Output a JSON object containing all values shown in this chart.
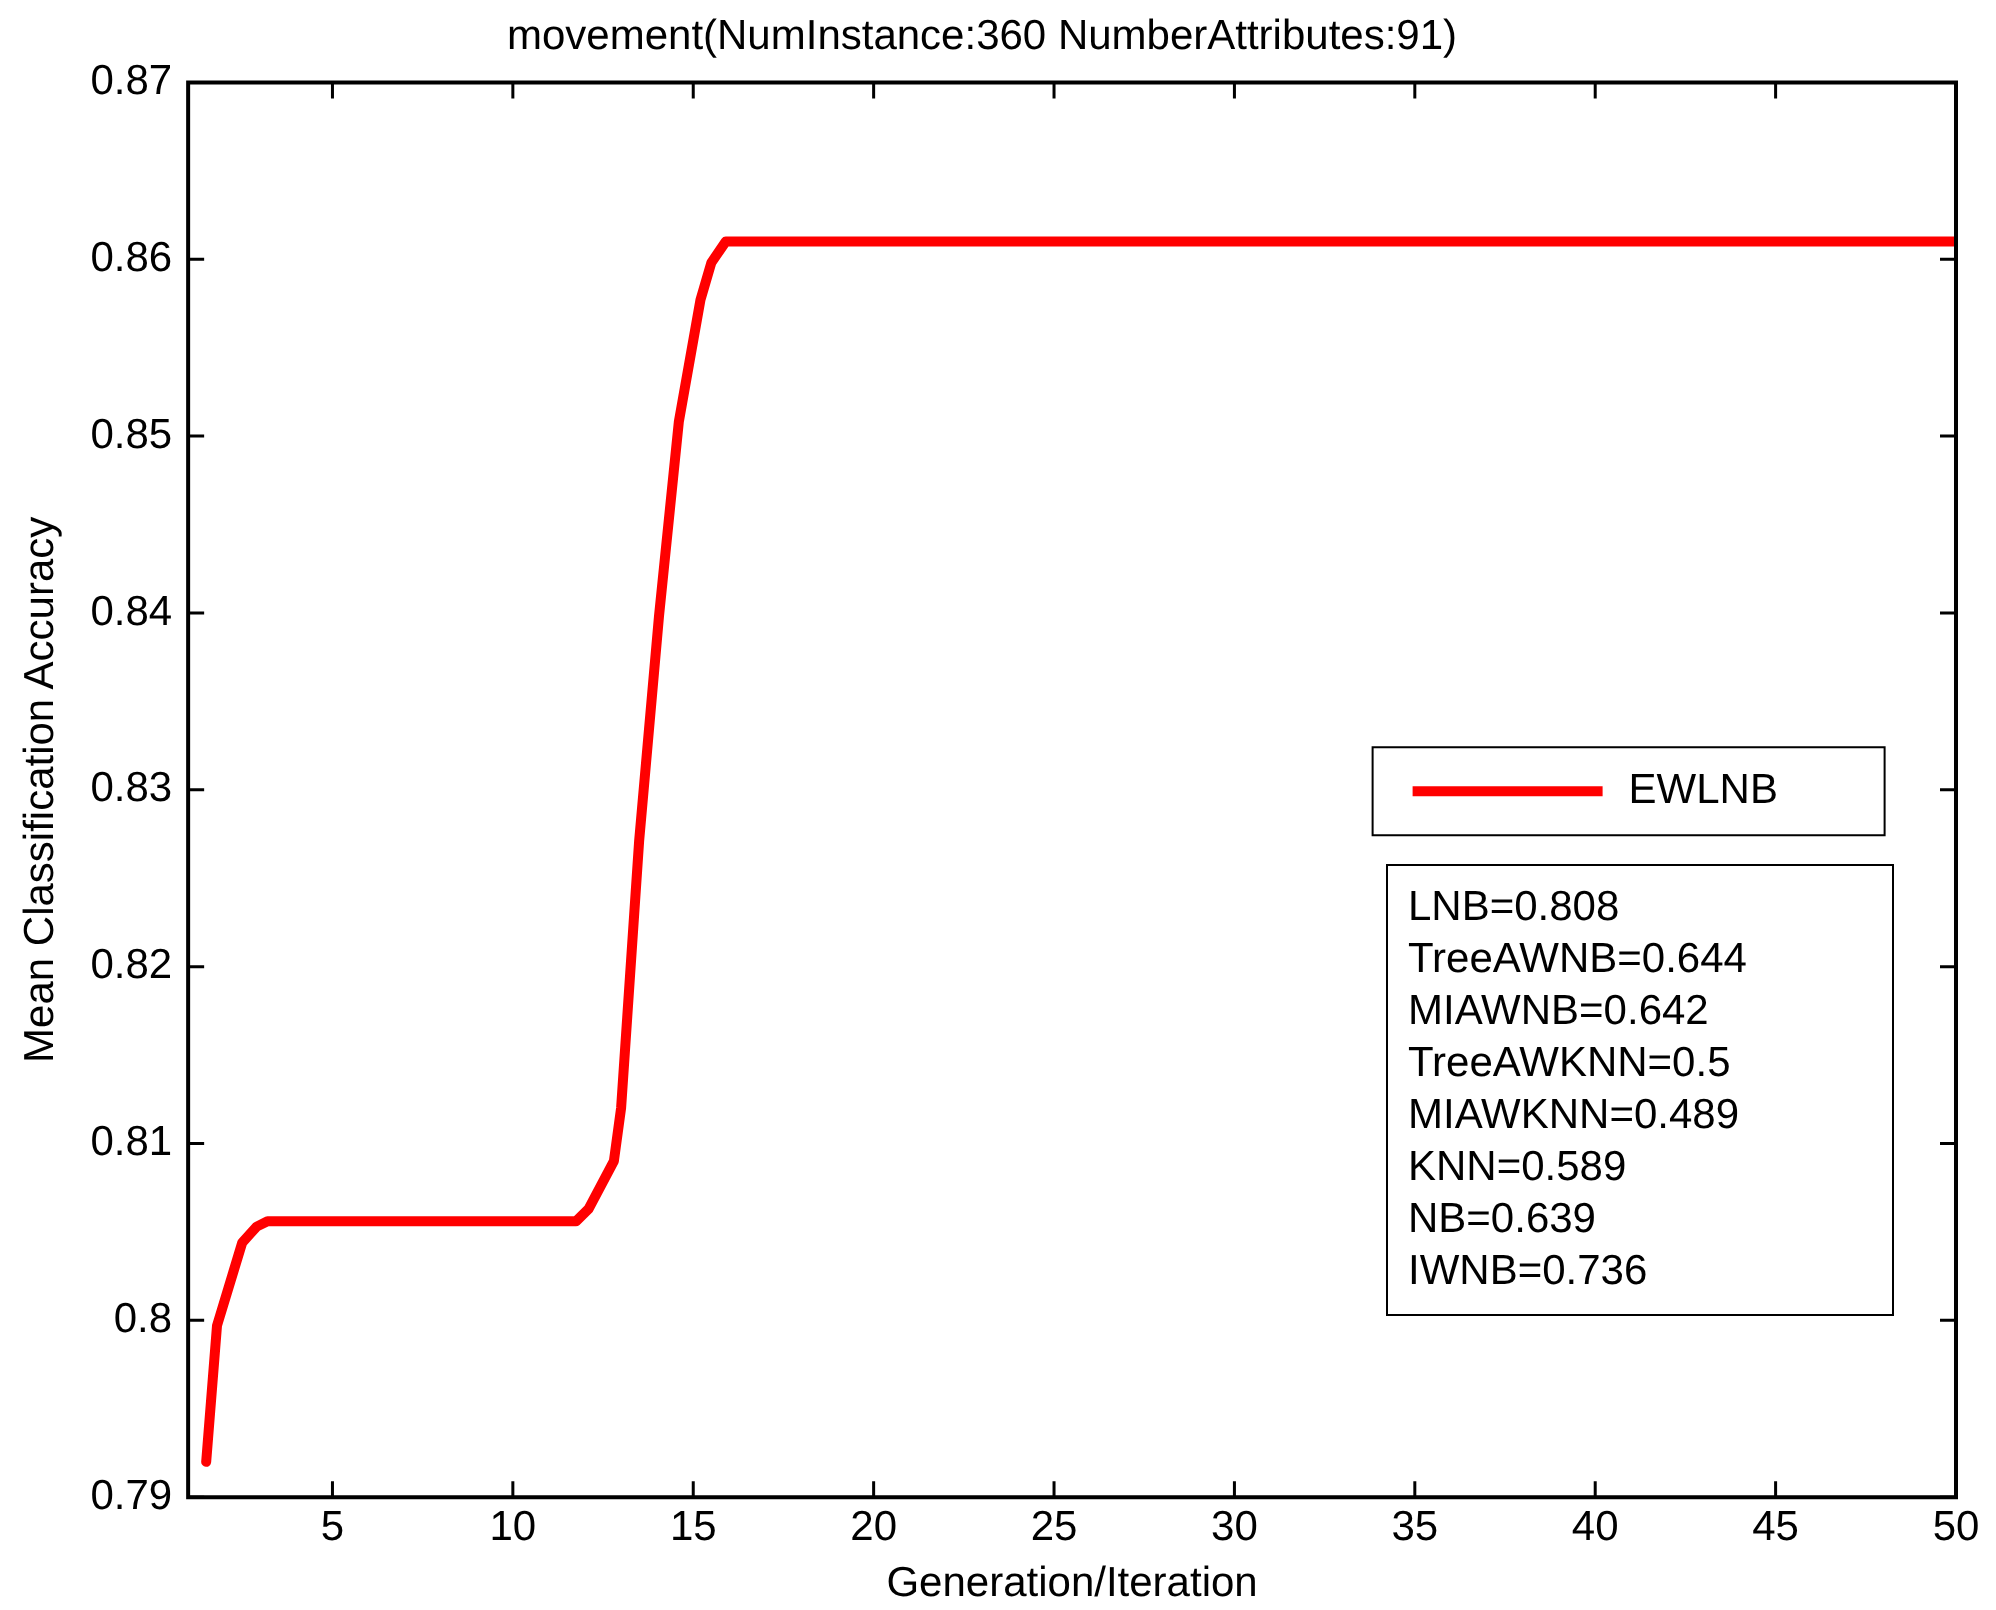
{
  "chart_data": {
    "type": "line",
    "title": "movement(NumInstance:360 NumberAttributes:91)",
    "xlabel": "Generation/Iteration",
    "ylabel": "Mean Classification Accuracy",
    "xlim": [
      1,
      50
    ],
    "xticks": [
      5,
      10,
      15,
      20,
      25,
      30,
      35,
      40,
      45,
      50
    ],
    "ylim": [
      0.79,
      0.87
    ],
    "yticks": [
      0.79,
      0.8,
      0.81,
      0.82,
      0.83,
      0.84,
      0.85,
      0.86,
      0.87
    ],
    "grid": false,
    "legend": "right",
    "marker": "none",
    "line_style": "solid",
    "series": [
      {
        "name": "EWLNB",
        "color": "#ff0000",
        "x": [
          1.5,
          1.8,
          2.5,
          2.9,
          3.2,
          11.75,
          12.1,
          12.8,
          13.0,
          13.5,
          14.05,
          14.6,
          15.2,
          15.5,
          15.9,
          50
        ],
        "values": [
          0.792,
          0.7997,
          0.8044,
          0.8053,
          0.8056,
          0.8056,
          0.8063,
          0.809,
          0.812,
          0.8271,
          0.8398,
          0.8508,
          0.8577,
          0.8598,
          0.861,
          0.861
        ]
      }
    ],
    "annotations": [
      "LNB=0.808",
      "TreeAWNB=0.644",
      "MIAWNB=0.642",
      "TreeAWKNN=0.5",
      "MIAWKNN=0.489",
      "KNN=0.589",
      "NB=0.639",
      "IWNB=0.736"
    ]
  }
}
